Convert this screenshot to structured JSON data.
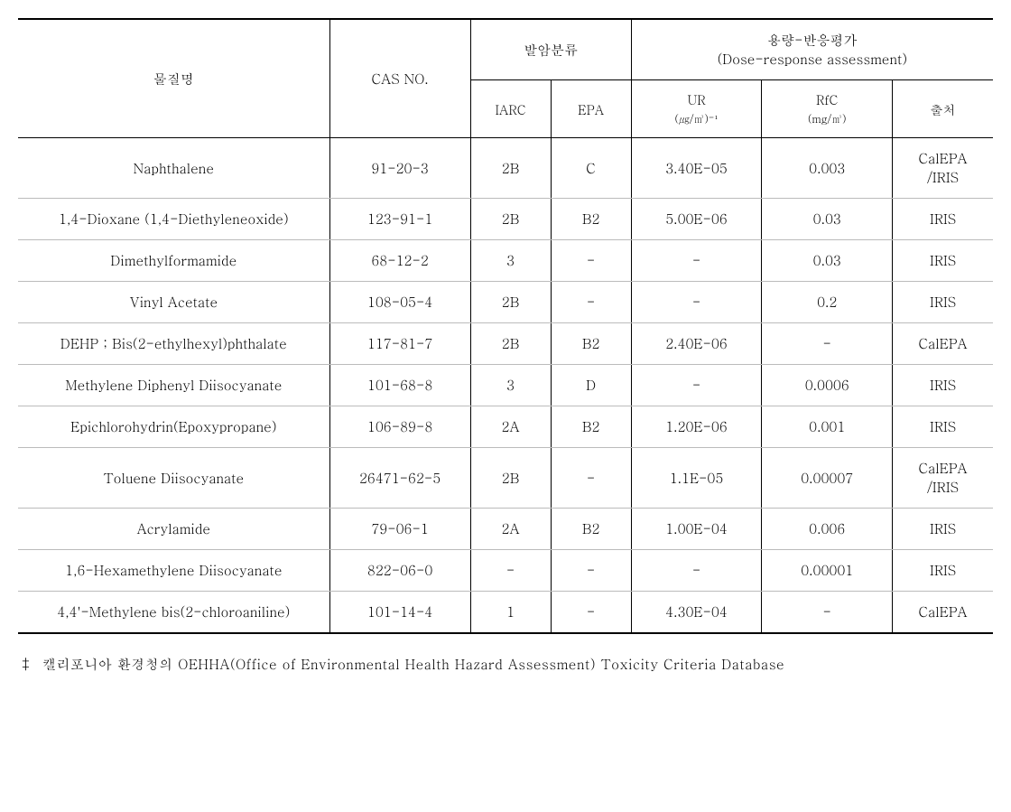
{
  "table": {
    "headers": {
      "name": "물질명",
      "cas": "CAS NO.",
      "carcinogen_group": "발암분류",
      "dose_response_group": "용량-반응평가",
      "dose_response_sub": "(Dose-response assessment)",
      "iarc": "IARC",
      "epa": "EPA",
      "ur": "UR",
      "ur_unit": "(㎍/㎥)⁻¹",
      "rfc": "RfC",
      "rfc_unit": "(mg/㎥)",
      "source": "출처"
    },
    "rows": [
      {
        "name": "Naphthalene",
        "cas": "91-20-3",
        "iarc": "2B",
        "epa": "C",
        "ur": "3.40E-05",
        "rfc": "0.003",
        "source": "CalEPA\n/IRIS"
      },
      {
        "name": "1,4-Dioxane (1,4-Diethyleneoxide)",
        "cas": "123-91-1",
        "iarc": "2B",
        "epa": "B2",
        "ur": "5.00E-06",
        "rfc": "0.03",
        "source": "IRIS"
      },
      {
        "name": "Dimethylformamide",
        "cas": "68-12-2",
        "iarc": "3",
        "epa": "-",
        "ur": "-",
        "rfc": "0.03",
        "source": "IRIS"
      },
      {
        "name": "Vinyl Acetate",
        "cas": "108-05-4",
        "iarc": "2B",
        "epa": "-",
        "ur": "-",
        "rfc": "0.2",
        "source": "IRIS"
      },
      {
        "name": "DEHP ; Bis(2-ethylhexyl)phthalate",
        "cas": "117-81-7",
        "iarc": "2B",
        "epa": "B2",
        "ur": "2.40E-06",
        "rfc": "-",
        "source": "CalEPA"
      },
      {
        "name": "Methylene Diphenyl Diisocyanate",
        "cas": "101-68-8",
        "iarc": "3",
        "epa": "D",
        "ur": "-",
        "rfc": "0.0006",
        "source": "IRIS"
      },
      {
        "name": "Epichlorohydrin(Epoxypropane)",
        "cas": "106-89-8",
        "iarc": "2A",
        "epa": "B2",
        "ur": "1.20E-06",
        "rfc": "0.001",
        "source": "IRIS"
      },
      {
        "name": "Toluene Diisocyanate",
        "cas": "26471-62-5",
        "iarc": "2B",
        "epa": "-",
        "ur": "1.1E-05",
        "rfc": "0.00007",
        "source": "CalEPA\n/IRIS"
      },
      {
        "name": "Acrylamide",
        "cas": "79-06-1",
        "iarc": "2A",
        "epa": "B2",
        "ur": "1.00E-04",
        "rfc": "0.006",
        "source": "IRIS"
      },
      {
        "name": "1,6-Hexamethylene Diisocyanate",
        "cas": "822-06-0",
        "iarc": "-",
        "epa": "-",
        "ur": "-",
        "rfc": "0.00001",
        "source": "IRIS"
      },
      {
        "name": "4,4'-Methylene bis(2-chloroaniline)",
        "cas": "101-14-4",
        "iarc": "1",
        "epa": "-",
        "ur": "4.30E-04",
        "rfc": "-",
        "source": "CalEPA"
      }
    ]
  },
  "footnote": {
    "marker": "‡",
    "text": "캘리포니아 환경청의 OEHHA(Office of Environmental Health Hazard Assessment) Toxicity Criteria Database"
  },
  "styling": {
    "background_color": "#ffffff",
    "border_color_main": "#000000",
    "border_color_row": "#bbbbbb",
    "font_size_body": 15,
    "font_size_sub": 14,
    "font_size_unit": 12
  }
}
